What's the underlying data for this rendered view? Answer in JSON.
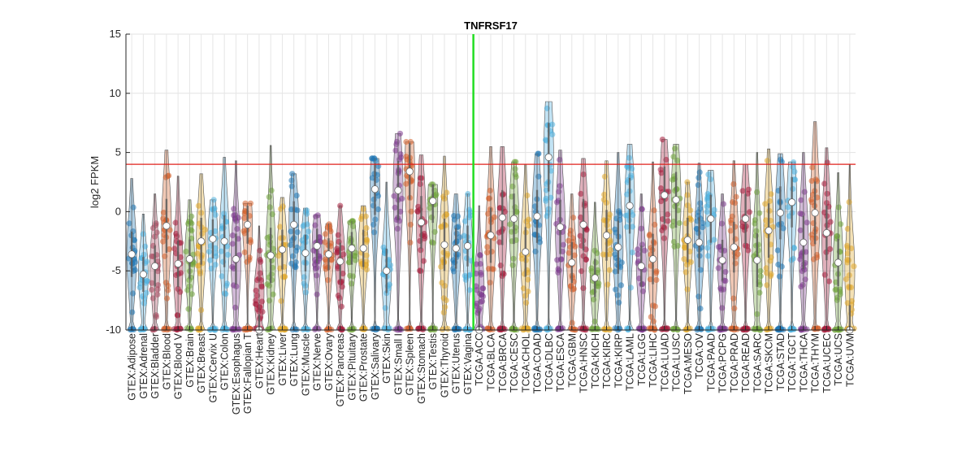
{
  "chart_data": {
    "type": "violin",
    "title": "TNFRSF17",
    "xlabel": "",
    "ylabel": "log2 FPKM",
    "ylim": [
      -10,
      15
    ],
    "yticks": [
      -10,
      -5,
      0,
      5,
      10,
      15
    ],
    "grid": true,
    "threshold_line": {
      "value": 4,
      "color": "#e0201b"
    },
    "divider_between": [
      "GTEX:Vagina",
      "TCGA:ACC"
    ],
    "divider_color": "#22dd22",
    "categories": [
      "GTEX:Adipose",
      "GTEX:Adrenal",
      "GTEX:Bladder",
      "GTEX:Blood",
      "GTEX:Blood V",
      "GTEX:Brain",
      "GTEX:Breast",
      "GTEX:Cervix U",
      "GTEX:Colon",
      "GTEX:Esophagus",
      "GTEX:Fallopian T",
      "GTEX:Heart",
      "GTEX:Kidney",
      "GTEX:Liver",
      "GTEX:Lung",
      "GTEX:Muscle",
      "GTEX:Nerve",
      "GTEX:Ovary",
      "GTEX:Pancreas",
      "GTEX:Pituitary",
      "GTEX:Prostate",
      "GTEX:Salivary",
      "GTEX:Skin",
      "GTEX:Small I",
      "GTEX:Spleen",
      "GTEX:Stomach",
      "GTEX:Testis",
      "GTEX:Thyroid",
      "GTEX:Uterus",
      "GTEX:Vagina",
      "TCGA:ACC",
      "TCGA:BLCA",
      "TCGA:BRCA",
      "TCGA:CESC",
      "TCGA:CHOL",
      "TCGA:COAD",
      "TCGA:DLBC",
      "TCGA:ESCA",
      "TCGA:GBM",
      "TCGA:HNSC",
      "TCGA:KICH",
      "TCGA:KIRC",
      "TCGA:KIRP",
      "TCGA:LAML",
      "TCGA:LGG",
      "TCGA:LIHC",
      "TCGA:LUAD",
      "TCGA:LUSC",
      "TCGA:MESO",
      "TCGA:OV",
      "TCGA:PAAD",
      "TCGA:PCPG",
      "TCGA:PRAD",
      "TCGA:READ",
      "TCGA:SARC",
      "TCGA:SKCM",
      "TCGA:STAD",
      "TCGA:TGCT",
      "TCGA:THCA",
      "TCGA:THYM",
      "TCGA:UCEC",
      "TCGA:UCS",
      "TCGA:UVM"
    ],
    "medians": [
      -3.6,
      -5.3,
      -4.6,
      -1.2,
      -4.4,
      -4.0,
      -2.5,
      -2.3,
      -2.5,
      -4.0,
      -1.1,
      -10.0,
      -3.7,
      -3.2,
      -1.1,
      -3.5,
      -2.9,
      -3.6,
      -4.2,
      -3.1,
      -3.1,
      1.9,
      -5.0,
      1.8,
      3.4,
      -0.9,
      0.9,
      -2.8,
      -3.1,
      -2.9,
      -10.0,
      -2.0,
      -0.5,
      -0.6,
      -3.4,
      -0.4,
      4.6,
      -1.3,
      -4.3,
      -1.1,
      -5.6,
      -2.0,
      -3.0,
      0.5,
      -4.6,
      -4.0,
      1.4,
      1.0,
      -2.4,
      -2.6,
      -0.6,
      -4.1,
      -3.0,
      -0.6,
      -4.1,
      -1.6,
      -0.1,
      0.8,
      -2.6,
      -0.1,
      -1.8,
      -4.3,
      -10.0
    ],
    "upper_whiskers": [
      2.8,
      -0.2,
      1.5,
      5.2,
      3.0,
      1.0,
      3.2,
      1.0,
      4.6,
      4.3,
      0.7,
      -1.2,
      5.6,
      1.2,
      3.2,
      0.3,
      -0.3,
      -1.0,
      0.5,
      -0.8,
      0.5,
      4.5,
      2.5,
      6.6,
      5.9,
      4.8,
      2.3,
      4.7,
      1.5,
      1.5,
      0.5,
      5.5,
      5.5,
      4.2,
      4.0,
      4.9,
      9.3,
      5.2,
      1.5,
      4.5,
      0.8,
      4.3,
      5.0,
      5.7,
      1.5,
      4.2,
      6.1,
      5.7,
      2.5,
      4.1,
      3.5,
      1.5,
      4.3,
      4.0,
      5.0,
      5.3,
      4.9,
      4.2,
      5.0,
      7.6,
      5.4,
      3.3,
      4.0
    ],
    "colors": [
      "#1f77b4",
      "#4fb0df",
      "#a8485f",
      "#d4612b",
      "#a51e3c",
      "#6fa23a",
      "#e0a82b",
      "#4fb0df",
      "#4fb0df",
      "#7e3a8e",
      "#d4612b",
      "#a51e3c",
      "#6fa23a",
      "#e0a82b",
      "#1f77b4",
      "#4fb0df",
      "#7e3a8e",
      "#d4612b",
      "#a51e3c",
      "#6fa23a",
      "#e0a82b",
      "#1f77b4",
      "#4fb0df",
      "#7e3a8e",
      "#d4612b",
      "#a51e3c",
      "#6fa23a",
      "#e0a82b",
      "#1f77b4",
      "#4fb0df",
      "#7e3a8e",
      "#d4612b",
      "#a51e3c",
      "#6fa23a",
      "#e0a82b",
      "#1f77b4",
      "#4fb0df",
      "#7e3a8e",
      "#d4612b",
      "#a51e3c",
      "#6fa23a",
      "#e0a82b",
      "#1f77b4",
      "#4fb0df",
      "#7e3a8e",
      "#d4612b",
      "#a51e3c",
      "#6fa23a",
      "#e0a82b",
      "#1f77b4",
      "#4fb0df",
      "#7e3a8e",
      "#d4612b",
      "#a51e3c",
      "#6fa23a",
      "#e0a82b",
      "#1f77b4",
      "#4fb0df",
      "#7e3a8e",
      "#d4612b",
      "#a51e3c",
      "#6fa23a",
      "#e0a82b"
    ]
  }
}
